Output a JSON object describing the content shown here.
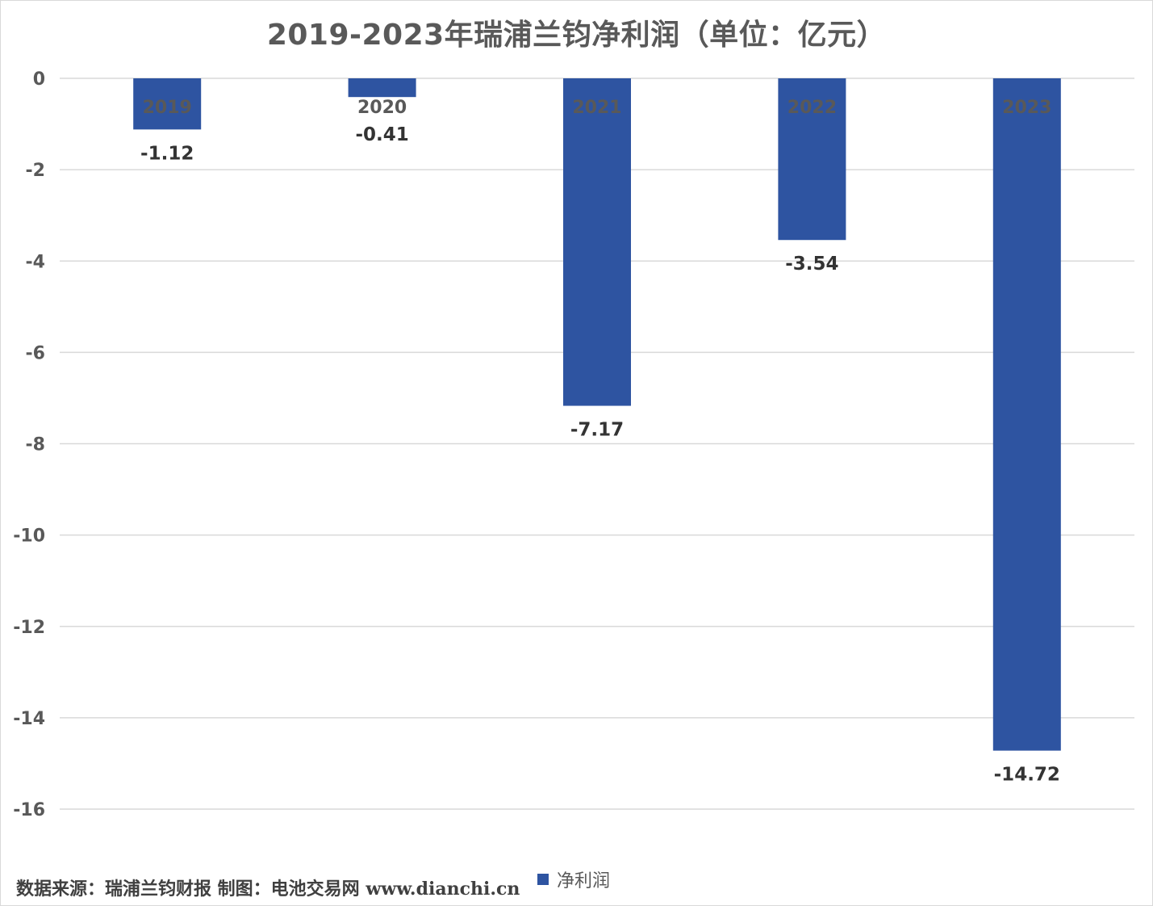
{
  "chart_data": {
    "type": "bar",
    "title": "2019-2023年瑞浦兰钧净利润（单位：亿元）",
    "categories": [
      "2019",
      "2020",
      "2021",
      "2022",
      "2023"
    ],
    "series": [
      {
        "name": "净利润",
        "values": [
          -1.12,
          -0.41,
          -7.17,
          -3.54,
          -14.72
        ],
        "color": "#2e54a1"
      }
    ],
    "value_labels": [
      "-1.12",
      "-0.41",
      "-7.17",
      "-3.54",
      "-14.72"
    ],
    "ylim": [
      -16,
      0
    ],
    "yticks": [
      "0",
      "-2",
      "-4",
      "-6",
      "-8",
      "-10",
      "-12",
      "-14",
      "-16"
    ],
    "grid": true,
    "legend_position": "bottom",
    "xlabel": "",
    "ylabel": ""
  },
  "footer": {
    "source_text": "数据来源：瑞浦兰钧财报  制图：电池交易网 www.dianchi.cn"
  }
}
